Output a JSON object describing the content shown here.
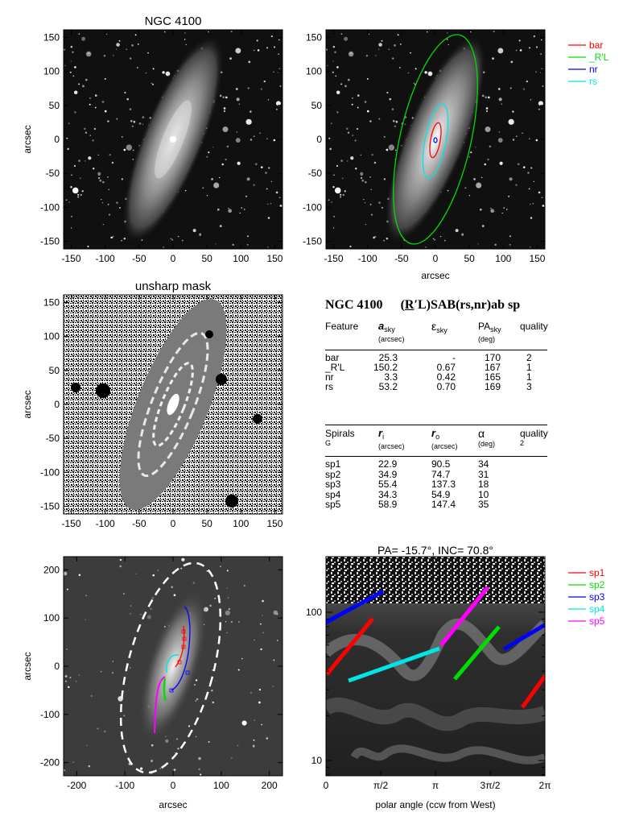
{
  "panels": {
    "image": {
      "title": "NGC 4100",
      "ylabel": "arcsec",
      "ticks": [
        "-150",
        "-100",
        "-50",
        "0",
        "50",
        "100",
        "150"
      ]
    },
    "ellipses": {
      "xlabel": "arcsec",
      "ticks": [
        "-150",
        "-100",
        "-50",
        "0",
        "50",
        "100",
        "150"
      ],
      "legend": [
        {
          "label": "bar",
          "color": "#ff0000"
        },
        {
          "label": "_R'L",
          "color": "#00dd00"
        },
        {
          "label": "nr",
          "color": "#0000ff"
        },
        {
          "label": "rs",
          "color": "#00e5e5"
        }
      ]
    },
    "unsharp": {
      "title": "unsharp mask",
      "ylabel": "arcsec",
      "ticks": [
        "-150",
        "-100",
        "-50",
        "0",
        "50",
        "100",
        "150"
      ]
    },
    "spirals_sky": {
      "xlabel": "arcsec",
      "ylabel": "arcsec",
      "xticks": [
        "-200",
        "-100",
        "0",
        "100",
        "200"
      ],
      "yticks": [
        "-200",
        "-100",
        "0",
        "100",
        "200"
      ]
    },
    "polar": {
      "title": "PA= -15.7°, INC= 70.8°",
      "xlabel": "polar angle (ccw from West)",
      "xticks": [
        "0",
        "π/2",
        "π",
        "3π/2",
        "2π"
      ],
      "yticks": [
        "100",
        "10"
      ],
      "legend": [
        {
          "label": "sp1",
          "color": "#ff0000"
        },
        {
          "label": "sp2",
          "color": "#00dd00"
        },
        {
          "label": "sp3",
          "color": "#0000ff"
        },
        {
          "label": "sp4",
          "color": "#00e5e5"
        },
        {
          "label": "sp5",
          "color": "#ff00ff"
        }
      ]
    }
  },
  "classification": {
    "name": "NGC 4100",
    "type_prefix": "(",
    "type_R": "R",
    "type_rest": "′L)SAB(rs,nr)ab sp"
  },
  "features_table": {
    "headers": [
      {
        "main": "Feature",
        "sub": ""
      },
      {
        "main": "a",
        "submain": "sky",
        "sub": "(arcsec)"
      },
      {
        "main": "ε",
        "submain": "sky",
        "sub": ""
      },
      {
        "main": "PA",
        "submain": "sky",
        "sub": "(deg)"
      },
      {
        "main": "quality",
        "sub": ""
      }
    ],
    "rows": [
      [
        "bar",
        "25.3",
        "-",
        "170",
        "2"
      ],
      [
        "_R'L",
        "150.2",
        "0.67",
        "167",
        "1"
      ],
      [
        "nr",
        "3.3",
        "0.42",
        "165",
        "1"
      ],
      [
        "rs",
        "53.2",
        "0.70",
        "169",
        "3"
      ]
    ]
  },
  "spirals_table": {
    "headers": [
      {
        "main": "Spirals",
        "sub": "G"
      },
      {
        "main": "r",
        "submain": "i",
        "sub": "(arcsec)"
      },
      {
        "main": "r",
        "submain": "o",
        "sub": "(arcsec)"
      },
      {
        "main": "α",
        "sub": "(deg)"
      },
      {
        "main": "quality",
        "sub": "2"
      }
    ],
    "rows": [
      [
        "sp1",
        "22.9",
        "90.5",
        "34"
      ],
      [
        "sp2",
        "34.9",
        "74.7",
        "31"
      ],
      [
        "sp3",
        "55.4",
        "137.3",
        "18"
      ],
      [
        "sp4",
        "34.3",
        "54.9",
        "10"
      ],
      [
        "sp5",
        "58.9",
        "147.4",
        "35"
      ]
    ]
  }
}
